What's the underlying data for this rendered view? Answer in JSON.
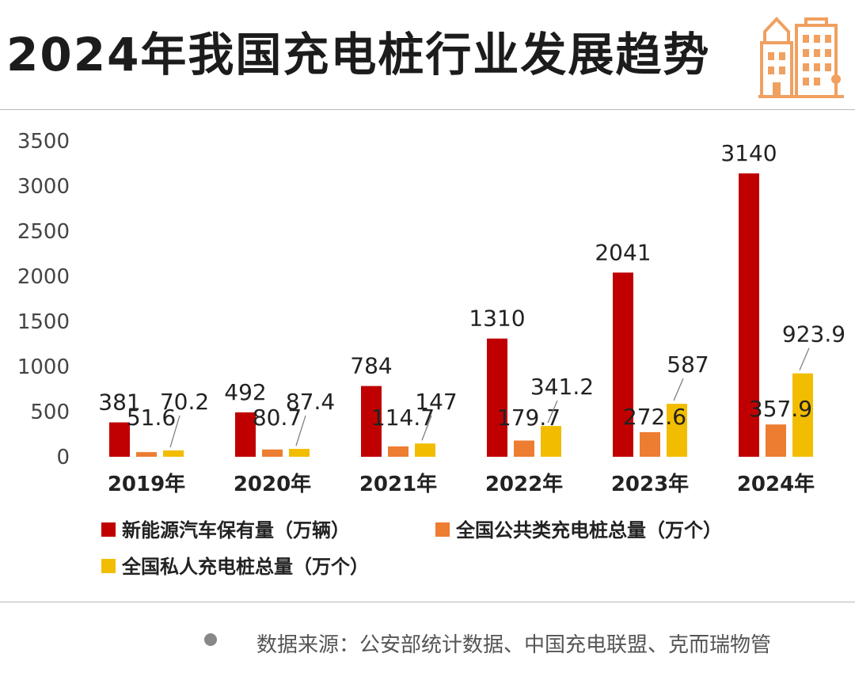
{
  "title": "2024年我国充电桩行业发展趋势",
  "source": "数据来源：公安部统计数据、中国充电联盟、克而瑞物管",
  "icon": "building-icon",
  "colors": {
    "series1": "#c00000",
    "series2": "#ed7d31",
    "series3": "#f2bd00",
    "icon": "#f0a060",
    "divider": "#b9b9b9"
  },
  "chart_data": {
    "type": "bar",
    "categories": [
      "2019年",
      "2020年",
      "2021年",
      "2022年",
      "2023年",
      "2024年"
    ],
    "series": [
      {
        "name": "新能源汽车保有量（万辆）",
        "values": [
          381,
          492,
          784,
          1310,
          2041,
          3140
        ]
      },
      {
        "name": "全国公共类充电桩总量（万个）",
        "values": [
          51.6,
          80.7,
          114.7,
          179.7,
          272.6,
          357.9
        ]
      },
      {
        "name": "全国私人充电桩总量（万个）",
        "values": [
          70.2,
          87.4,
          147,
          341.2,
          587,
          923.9
        ]
      }
    ],
    "data_labels": [
      [
        "381",
        "492",
        "784",
        "1310",
        "2041",
        "3140"
      ],
      [
        "51.6",
        "80.7",
        "114.7",
        "179.7",
        "272.6",
        "357.9"
      ],
      [
        "70.2",
        "87.4",
        "147",
        "341.2",
        "587",
        "923.9"
      ]
    ],
    "yticks": [
      "0",
      "500",
      "1000",
      "1500",
      "2000",
      "2500",
      "3000",
      "3500"
    ],
    "ylim": [
      0,
      3500
    ],
    "grid": false,
    "legend_position": "bottom"
  }
}
